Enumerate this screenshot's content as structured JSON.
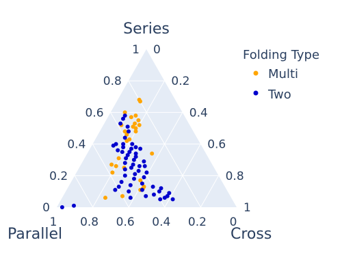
{
  "chart_data": {
    "type": "ternary-scatter",
    "axes": {
      "a": {
        "title": "Series",
        "ticks": [
          "0",
          "0.2",
          "0.4",
          "0.6",
          "0.8",
          "1"
        ]
      },
      "b": {
        "title": "Parallel",
        "ticks": [
          "0",
          "0.2",
          "0.4",
          "0.6",
          "0.8",
          "1"
        ]
      },
      "c": {
        "title": "Cross",
        "ticks": [
          "0",
          "0.2",
          "0.4",
          "0.6",
          "0.8",
          "1"
        ]
      }
    },
    "legend": {
      "title": "Folding Type",
      "position": "top-right"
    },
    "series": [
      {
        "name": "Multi",
        "color": "#ffa500",
        "points": [
          {
            "a": 0.68,
            "b": 0.2,
            "c": 0.12
          },
          {
            "a": 0.67,
            "b": 0.2,
            "c": 0.13
          },
          {
            "a": 0.6,
            "b": 0.32,
            "c": 0.08
          },
          {
            "a": 0.57,
            "b": 0.3,
            "c": 0.13
          },
          {
            "a": 0.58,
            "b": 0.27,
            "c": 0.15
          },
          {
            "a": 0.55,
            "b": 0.27,
            "c": 0.18
          },
          {
            "a": 0.53,
            "b": 0.3,
            "c": 0.17
          },
          {
            "a": 0.52,
            "b": 0.28,
            "c": 0.2
          },
          {
            "a": 0.52,
            "b": 0.38,
            "c": 0.1
          },
          {
            "a": 0.51,
            "b": 0.32,
            "c": 0.17
          },
          {
            "a": 0.5,
            "b": 0.31,
            "c": 0.19
          },
          {
            "a": 0.48,
            "b": 0.32,
            "c": 0.2
          },
          {
            "a": 0.48,
            "b": 0.38,
            "c": 0.14
          },
          {
            "a": 0.46,
            "b": 0.38,
            "c": 0.16
          },
          {
            "a": 0.43,
            "b": 0.38,
            "c": 0.19
          },
          {
            "a": 0.42,
            "b": 0.4,
            "c": 0.18
          },
          {
            "a": 0.34,
            "b": 0.3,
            "c": 0.36
          },
          {
            "a": 0.31,
            "b": 0.5,
            "c": 0.19
          },
          {
            "a": 0.27,
            "b": 0.56,
            "c": 0.17
          },
          {
            "a": 0.26,
            "b": 0.54,
            "c": 0.2
          },
          {
            "a": 0.25,
            "b": 0.5,
            "c": 0.25
          },
          {
            "a": 0.22,
            "b": 0.58,
            "c": 0.2
          },
          {
            "a": 0.17,
            "b": 0.45,
            "c": 0.38
          },
          {
            "a": 0.13,
            "b": 0.45,
            "c": 0.42
          },
          {
            "a": 0.12,
            "b": 0.46,
            "c": 0.42
          },
          {
            "a": 0.11,
            "b": 0.48,
            "c": 0.41
          },
          {
            "a": 0.07,
            "b": 0.6,
            "c": 0.33
          },
          {
            "a": 0.06,
            "b": 0.7,
            "c": 0.24
          }
        ]
      },
      {
        "name": "Two",
        "color": "#0000cd",
        "points": [
          {
            "a": 0.58,
            "b": 0.33,
            "c": 0.09
          },
          {
            "a": 0.56,
            "b": 0.35,
            "c": 0.09
          },
          {
            "a": 0.53,
            "b": 0.38,
            "c": 0.09
          },
          {
            "a": 0.51,
            "b": 0.35,
            "c": 0.14
          },
          {
            "a": 0.48,
            "b": 0.36,
            "c": 0.16
          },
          {
            "a": 0.44,
            "b": 0.4,
            "c": 0.16
          },
          {
            "a": 0.4,
            "b": 0.47,
            "c": 0.13
          },
          {
            "a": 0.4,
            "b": 0.43,
            "c": 0.17
          },
          {
            "a": 0.4,
            "b": 0.38,
            "c": 0.22
          },
          {
            "a": 0.39,
            "b": 0.49,
            "c": 0.12
          },
          {
            "a": 0.38,
            "b": 0.44,
            "c": 0.18
          },
          {
            "a": 0.38,
            "b": 0.37,
            "c": 0.25
          },
          {
            "a": 0.37,
            "b": 0.4,
            "c": 0.23
          },
          {
            "a": 0.37,
            "b": 0.35,
            "c": 0.28
          },
          {
            "a": 0.36,
            "b": 0.48,
            "c": 0.16
          },
          {
            "a": 0.35,
            "b": 0.46,
            "c": 0.19
          },
          {
            "a": 0.35,
            "b": 0.42,
            "c": 0.23
          },
          {
            "a": 0.34,
            "b": 0.39,
            "c": 0.27
          },
          {
            "a": 0.33,
            "b": 0.44,
            "c": 0.23
          },
          {
            "a": 0.32,
            "b": 0.4,
            "c": 0.28
          },
          {
            "a": 0.31,
            "b": 0.46,
            "c": 0.23
          },
          {
            "a": 0.3,
            "b": 0.42,
            "c": 0.28
          },
          {
            "a": 0.29,
            "b": 0.37,
            "c": 0.34
          },
          {
            "a": 0.28,
            "b": 0.48,
            "c": 0.24
          },
          {
            "a": 0.27,
            "b": 0.44,
            "c": 0.29
          },
          {
            "a": 0.26,
            "b": 0.41,
            "c": 0.33
          },
          {
            "a": 0.26,
            "b": 0.38,
            "c": 0.36
          },
          {
            "a": 0.25,
            "b": 0.46,
            "c": 0.29
          },
          {
            "a": 0.24,
            "b": 0.5,
            "c": 0.26
          },
          {
            "a": 0.23,
            "b": 0.43,
            "c": 0.34
          },
          {
            "a": 0.22,
            "b": 0.39,
            "c": 0.39
          },
          {
            "a": 0.21,
            "b": 0.46,
            "c": 0.33
          },
          {
            "a": 0.2,
            "b": 0.52,
            "c": 0.28
          },
          {
            "a": 0.19,
            "b": 0.42,
            "c": 0.39
          },
          {
            "a": 0.18,
            "b": 0.48,
            "c": 0.34
          },
          {
            "a": 0.16,
            "b": 0.56,
            "c": 0.28
          },
          {
            "a": 0.15,
            "b": 0.45,
            "c": 0.4
          },
          {
            "a": 0.14,
            "b": 0.52,
            "c": 0.34
          },
          {
            "a": 0.13,
            "b": 0.59,
            "c": 0.28
          },
          {
            "a": 0.13,
            "b": 0.4,
            "c": 0.47
          },
          {
            "a": 0.12,
            "b": 0.36,
            "c": 0.52
          },
          {
            "a": 0.11,
            "b": 0.62,
            "c": 0.27
          },
          {
            "a": 0.11,
            "b": 0.47,
            "c": 0.42
          },
          {
            "a": 0.1,
            "b": 0.55,
            "c": 0.35
          },
          {
            "a": 0.1,
            "b": 0.38,
            "c": 0.52
          },
          {
            "a": 0.09,
            "b": 0.33,
            "c": 0.58
          },
          {
            "a": 0.08,
            "b": 0.42,
            "c": 0.5
          },
          {
            "a": 0.07,
            "b": 0.47,
            "c": 0.46
          },
          {
            "a": 0.07,
            "b": 0.35,
            "c": 0.58
          },
          {
            "a": 0.06,
            "b": 0.56,
            "c": 0.38
          },
          {
            "a": 0.06,
            "b": 0.37,
            "c": 0.57
          },
          {
            "a": 0.05,
            "b": 0.4,
            "c": 0.55
          },
          {
            "a": 0.05,
            "b": 0.33,
            "c": 0.62
          },
          {
            "a": 0.01,
            "b": 0.9,
            "c": 0.09
          },
          {
            "a": 0.0,
            "b": 0.97,
            "c": 0.03
          }
        ]
      }
    ]
  }
}
